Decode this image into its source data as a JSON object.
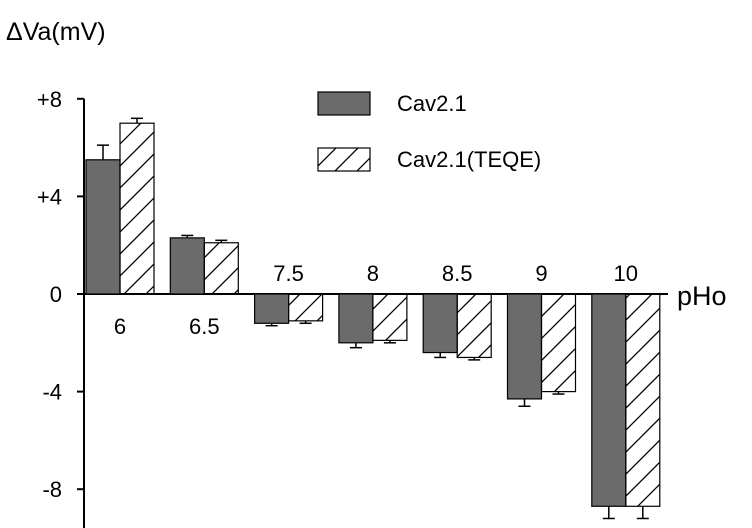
{
  "chart_data": {
    "type": "bar",
    "ylabel": "ΔVa(mV)",
    "xlabel": "pHo",
    "categories": [
      "6",
      "6.5",
      "7.5",
      "8",
      "8.5",
      "9",
      "10"
    ],
    "series": [
      {
        "name": "Cav2.1",
        "values": [
          5.5,
          2.3,
          -1.2,
          -2.0,
          -2.4,
          -4.3,
          -8.7
        ],
        "errors": [
          0.6,
          0.1,
          0.1,
          0.2,
          0.2,
          0.3,
          0.5
        ],
        "color": "#6b6b6b",
        "pattern": "solid"
      },
      {
        "name": "Cav2.1(TEQE)",
        "values": [
          7.0,
          2.1,
          -1.1,
          -1.9,
          -2.6,
          -4.0,
          -8.7
        ],
        "errors": [
          0.2,
          0.1,
          0.1,
          0.1,
          0.1,
          0.1,
          0.5
        ],
        "color": "#ffffff",
        "pattern": "hatched"
      }
    ],
    "yticks": [
      {
        "value": 8,
        "label": "+8"
      },
      {
        "value": 4,
        "label": "+4"
      },
      {
        "value": 0,
        "label": "0"
      },
      {
        "value": -4,
        "label": "-4"
      },
      {
        "value": -8,
        "label": "-8"
      }
    ],
    "ylim": [
      -9.4,
      8
    ],
    "grid": false,
    "legend_position": "top-right"
  }
}
